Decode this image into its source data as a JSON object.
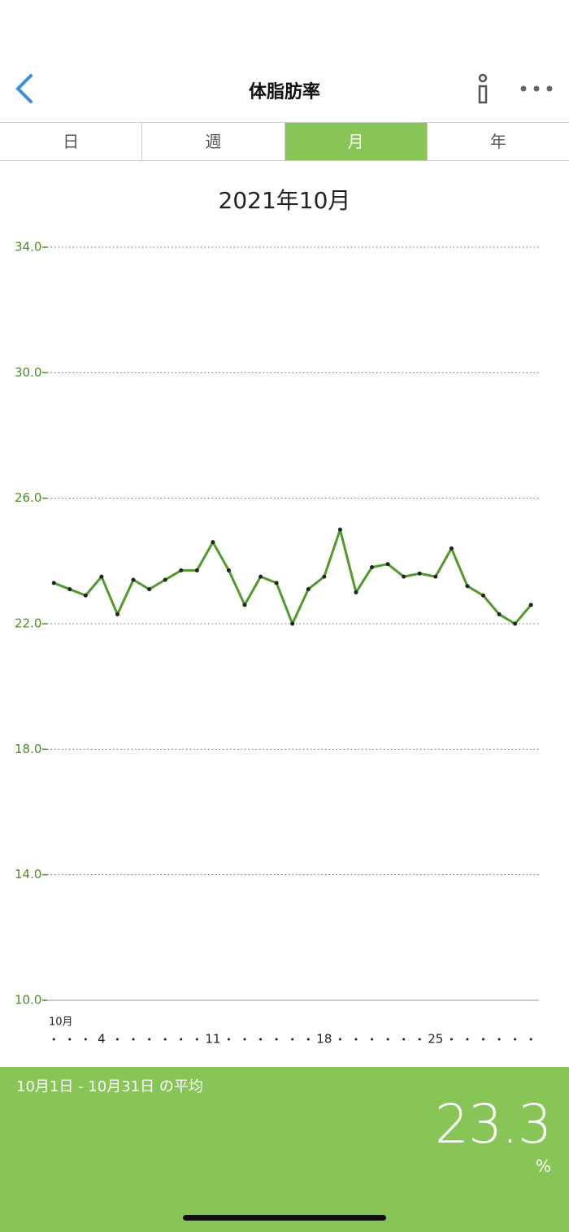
{
  "header": {
    "title": "体脂肪率"
  },
  "tabs": [
    {
      "label": "日",
      "active": false
    },
    {
      "label": "週",
      "active": false
    },
    {
      "label": "月",
      "active": true
    },
    {
      "label": "年",
      "active": false
    }
  ],
  "chart_data": {
    "type": "line",
    "title": "2021年10月",
    "x_first_label": "10月",
    "x": [
      1,
      2,
      3,
      4,
      5,
      6,
      7,
      8,
      9,
      10,
      11,
      12,
      13,
      14,
      15,
      16,
      17,
      18,
      19,
      20,
      21,
      22,
      23,
      24,
      25,
      26,
      27,
      28,
      29,
      30,
      31
    ],
    "series": [
      {
        "color": "#4f9a2a",
        "values": [
          23.3,
          23.1,
          22.9,
          23.5,
          22.3,
          23.4,
          23.1,
          23.4,
          23.7,
          23.7,
          24.6,
          23.7,
          22.6,
          23.5,
          23.3,
          22.0,
          23.1,
          23.5,
          25.0,
          23.0,
          23.8,
          23.9,
          23.5,
          23.6,
          23.5,
          24.4,
          23.2,
          22.9,
          22.3,
          22.0,
          22.6
        ]
      }
    ],
    "xlim": [
      0.58,
      31.5
    ],
    "xticks": [
      4,
      11,
      18,
      25
    ],
    "ylim": [
      10,
      34
    ],
    "yticks": [
      {
        "value": 10,
        "label": "10.0"
      },
      {
        "value": 14,
        "label": "14.0"
      },
      {
        "value": 18,
        "label": "18.0"
      },
      {
        "value": 22,
        "label": "22.0"
      },
      {
        "value": 26,
        "label": "26.0"
      },
      {
        "value": 30,
        "label": "30.0"
      },
      {
        "value": 34,
        "label": "34.0"
      }
    ],
    "grid": true
  },
  "footer": {
    "label": "10月1日 - 10月31日 の平均",
    "value": 23.3,
    "unit": "%"
  }
}
